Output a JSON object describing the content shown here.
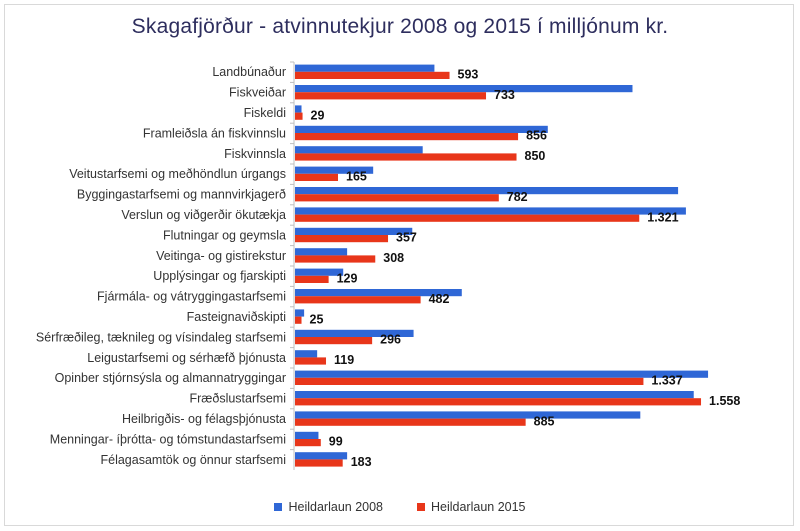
{
  "chart_data": {
    "type": "bar",
    "orientation": "horizontal",
    "title": "Skagafjörður - atvinnutekjur 2008 og 2015 í milljónum kr.",
    "categories": [
      "Landbúnaður",
      "Fiskveiðar",
      "Fiskeldi",
      "Framleiðsla án fiskvinnslu",
      "Fiskvinnsla",
      "Veitustarfsemi og meðhöndlun úrgangs",
      "Byggingastarfsemi og mannvirkjagerð",
      "Verslun og viðgerðir ökutækja",
      "Flutningar og geymsla",
      "Veitinga- og gistirekstur",
      "Upplýsingar og fjarskipti",
      "Fjármála- og vátryggingastarfsemi",
      "Fasteignaviðskipti",
      "Sérfræðileg, tæknileg og vísindaleg starfsemi",
      "Leigustarfsemi og sérhæfð þjónusta",
      "Opinber stjórnsýsla og almannatryggingar",
      "Fræðslustarfsemi",
      "Heilbrigðis- og félagsþjónusta",
      "Menningar- íþrótta- og tómstundastarfsemi",
      "Félagasamtök og önnur starfsemi"
    ],
    "series": [
      {
        "name": "Heildarlaun 2008",
        "color": "#2f67d6",
        "values": [
          535,
          1295,
          25,
          970,
          490,
          300,
          1470,
          1500,
          450,
          200,
          185,
          640,
          35,
          455,
          85,
          1585,
          1530,
          1325,
          90,
          200
        ]
      },
      {
        "name": "Heildarlaun 2015",
        "color": "#e8361a",
        "values": [
          593,
          733,
          29,
          856,
          850,
          165,
          782,
          1321,
          357,
          308,
          129,
          482,
          25,
          296,
          119,
          1337,
          1558,
          885,
          99,
          183
        ],
        "value_labels": [
          "593",
          "733",
          "29",
          "856",
          "850",
          "165",
          "782",
          "1.321",
          "357",
          "308",
          "129",
          "482",
          "25",
          "296",
          "119",
          "1.337",
          "1.558",
          "885",
          "99",
          "183"
        ]
      }
    ],
    "xlim": [
      0,
      1650
    ],
    "grid": false,
    "legend_position": "bottom"
  }
}
